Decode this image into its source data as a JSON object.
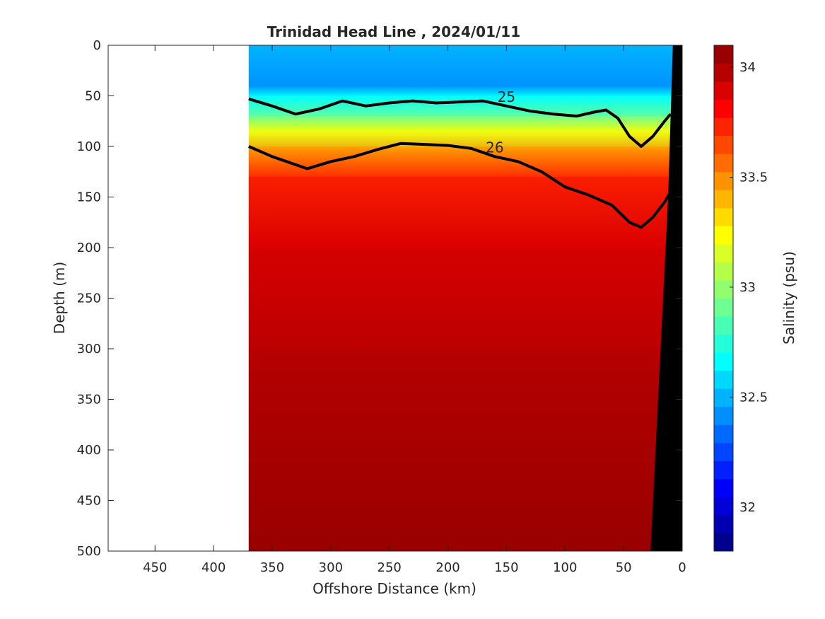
{
  "chart_data": {
    "type": "heatmap",
    "title": "Trinidad Head Line , 2024/01/11",
    "xlabel": "Offshore Distance (km)",
    "ylabel": "Depth (m)",
    "colorbar_label": "Salinity (psu)",
    "xlim": [
      490,
      0
    ],
    "ylim": [
      0,
      500
    ],
    "x_reversed": true,
    "y_reversed": true,
    "x_ticks": [
      450,
      400,
      350,
      300,
      250,
      200,
      150,
      100,
      50,
      0
    ],
    "y_ticks": [
      0,
      50,
      100,
      150,
      200,
      250,
      300,
      350,
      400,
      450,
      500
    ],
    "colorbar_range": [
      31.8,
      34.1
    ],
    "colorbar_ticks": [
      32,
      32.5,
      33,
      33.5,
      34
    ],
    "data_extent_km": [
      0,
      370
    ],
    "colormap": [
      "#00008f",
      "#0000b3",
      "#0000d9",
      "#0000ff",
      "#0020ff",
      "#0046ff",
      "#006aff",
      "#008fff",
      "#00b3ff",
      "#00d9ff",
      "#00ffff",
      "#24ffdb",
      "#48ffb6",
      "#6dff92",
      "#91ff6d",
      "#b6ff48",
      "#daff24",
      "#ffff00",
      "#ffdb00",
      "#ffb600",
      "#ff9200",
      "#ff6d00",
      "#ff4800",
      "#ff2400",
      "#ff0000",
      "#db0000",
      "#b60000",
      "#990000"
    ],
    "isopycnals": [
      {
        "label": "25",
        "points": [
          [
            370,
            53
          ],
          [
            350,
            60
          ],
          [
            330,
            68
          ],
          [
            310,
            63
          ],
          [
            290,
            55
          ],
          [
            270,
            60
          ],
          [
            250,
            57
          ],
          [
            230,
            55
          ],
          [
            210,
            57
          ],
          [
            190,
            56
          ],
          [
            170,
            55
          ],
          [
            150,
            60
          ],
          [
            130,
            65
          ],
          [
            110,
            68
          ],
          [
            90,
            70
          ],
          [
            75,
            66
          ],
          [
            65,
            64
          ],
          [
            55,
            72
          ],
          [
            45,
            90
          ],
          [
            35,
            100
          ],
          [
            25,
            90
          ],
          [
            15,
            75
          ],
          [
            10,
            68
          ]
        ]
      },
      {
        "label": "26",
        "points": [
          [
            370,
            100
          ],
          [
            350,
            110
          ],
          [
            320,
            122
          ],
          [
            300,
            115
          ],
          [
            280,
            110
          ],
          [
            260,
            103
          ],
          [
            240,
            97
          ],
          [
            220,
            98
          ],
          [
            200,
            99
          ],
          [
            180,
            102
          ],
          [
            160,
            110
          ],
          [
            140,
            115
          ],
          [
            120,
            125
          ],
          [
            100,
            140
          ],
          [
            80,
            148
          ],
          [
            60,
            158
          ],
          [
            45,
            175
          ],
          [
            35,
            180
          ],
          [
            25,
            170
          ],
          [
            15,
            155
          ],
          [
            10,
            145
          ]
        ]
      }
    ],
    "salinity_bands": [
      {
        "depth": 0,
        "value": 32.5
      },
      {
        "depth": 50,
        "value": 32.7
      },
      {
        "depth": 70,
        "value": 33.0
      },
      {
        "depth": 100,
        "value": 33.6
      },
      {
        "depth": 130,
        "value": 33.9
      },
      {
        "depth": 200,
        "value": 34.0
      },
      {
        "depth": 300,
        "value": 34.05
      },
      {
        "depth": 500,
        "value": 34.1
      }
    ],
    "bathymetry": [
      [
        0,
        0
      ],
      [
        0,
        500
      ],
      [
        27,
        500
      ],
      [
        12,
        150
      ],
      [
        8,
        0
      ]
    ]
  }
}
